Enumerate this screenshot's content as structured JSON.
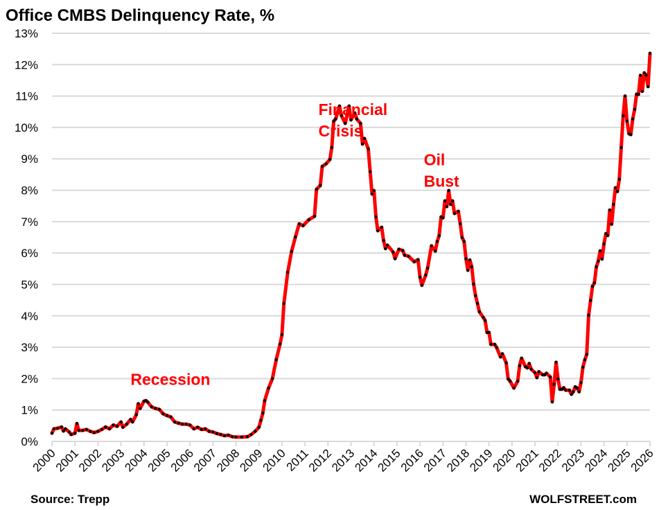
{
  "chart_data": {
    "type": "line",
    "title": "Office CMBS Delinquency Rate, %",
    "xlabel": "",
    "ylabel": "",
    "ylim": [
      0,
      13
    ],
    "xlim": [
      "2000-01",
      "2026-01"
    ],
    "grid": true,
    "legend": "none",
    "y_ticks": [
      "0%",
      "1%",
      "2%",
      "3%",
      "4%",
      "5%",
      "6%",
      "7%",
      "8%",
      "9%",
      "10%",
      "11%",
      "12%",
      "13%"
    ],
    "x_ticks": [
      "2000",
      "2001",
      "2002",
      "2003",
      "2004",
      "2005",
      "2006",
      "2007",
      "2008",
      "2009",
      "2010",
      "2011",
      "2012",
      "2013",
      "2014",
      "2015",
      "2016",
      "2017",
      "2018",
      "2019",
      "2020",
      "2021",
      "2022",
      "2023",
      "2024",
      "2025",
      "2026"
    ],
    "colors": {
      "line": "#ff0000",
      "markers": "#000000",
      "grid": "#d9d9d9",
      "annotations": "#ff0000"
    },
    "annotations": [
      {
        "lines": [
          "Recession"
        ],
        "date": "2003-06",
        "value": 1.8
      },
      {
        "lines": [
          "Financial",
          "Crisis"
        ],
        "date": "2011-08",
        "value": 10.4
      },
      {
        "lines": [
          "Oil",
          "Bust"
        ],
        "date": "2016-03",
        "value": 8.8
      }
    ],
    "series": [
      {
        "points": [
          [
            "2000-01",
            0.26
          ],
          [
            "2000-02",
            0.4
          ],
          [
            "2000-04",
            0.42
          ],
          [
            "2000-06",
            0.46
          ],
          [
            "2000-07",
            0.33
          ],
          [
            "2000-08",
            0.4
          ],
          [
            "2000-10",
            0.3
          ],
          [
            "2000-11",
            0.22
          ],
          [
            "2001-01",
            0.26
          ],
          [
            "2001-02",
            0.57
          ],
          [
            "2001-03",
            0.35
          ],
          [
            "2001-05",
            0.35
          ],
          [
            "2001-07",
            0.38
          ],
          [
            "2001-09",
            0.32
          ],
          [
            "2001-11",
            0.28
          ],
          [
            "2002-01",
            0.32
          ],
          [
            "2002-03",
            0.38
          ],
          [
            "2002-05",
            0.46
          ],
          [
            "2002-07",
            0.4
          ],
          [
            "2002-09",
            0.52
          ],
          [
            "2002-11",
            0.48
          ],
          [
            "2003-01",
            0.62
          ],
          [
            "2003-02",
            0.45
          ],
          [
            "2003-04",
            0.55
          ],
          [
            "2003-06",
            0.7
          ],
          [
            "2003-07",
            0.62
          ],
          [
            "2003-09",
            0.85
          ],
          [
            "2003-10",
            1.2
          ],
          [
            "2003-11",
            1.05
          ],
          [
            "2004-01",
            1.28
          ],
          [
            "2004-02",
            1.3
          ],
          [
            "2004-03",
            1.25
          ],
          [
            "2004-05",
            1.1
          ],
          [
            "2004-07",
            1.05
          ],
          [
            "2004-09",
            1.02
          ],
          [
            "2004-11",
            0.88
          ],
          [
            "2005-01",
            0.82
          ],
          [
            "2005-03",
            0.78
          ],
          [
            "2005-05",
            0.62
          ],
          [
            "2005-07",
            0.58
          ],
          [
            "2005-09",
            0.55
          ],
          [
            "2005-11",
            0.55
          ],
          [
            "2006-01",
            0.52
          ],
          [
            "2006-03",
            0.4
          ],
          [
            "2006-05",
            0.45
          ],
          [
            "2006-07",
            0.38
          ],
          [
            "2006-09",
            0.4
          ],
          [
            "2006-11",
            0.32
          ],
          [
            "2007-01",
            0.3
          ],
          [
            "2007-03",
            0.25
          ],
          [
            "2007-05",
            0.22
          ],
          [
            "2007-07",
            0.18
          ],
          [
            "2007-09",
            0.2
          ],
          [
            "2007-11",
            0.15
          ],
          [
            "2008-01",
            0.14
          ],
          [
            "2008-04",
            0.14
          ],
          [
            "2008-07",
            0.15
          ],
          [
            "2008-09",
            0.22
          ],
          [
            "2008-11",
            0.32
          ],
          [
            "2009-01",
            0.45
          ],
          [
            "2009-02",
            0.67
          ],
          [
            "2009-03",
            0.9
          ],
          [
            "2009-04",
            1.3
          ],
          [
            "2009-06",
            1.7
          ],
          [
            "2009-08",
            2.0
          ],
          [
            "2009-10",
            2.6
          ],
          [
            "2009-12",
            3.1
          ],
          [
            "2010-01",
            3.4
          ],
          [
            "2010-02",
            4.39
          ],
          [
            "2010-04",
            5.39
          ],
          [
            "2010-06",
            6.05
          ],
          [
            "2010-08",
            6.51
          ],
          [
            "2010-10",
            6.93
          ],
          [
            "2010-12",
            6.87
          ],
          [
            "2011-03",
            7.06
          ],
          [
            "2011-06",
            7.17
          ],
          [
            "2011-07",
            8.03
          ],
          [
            "2011-09",
            8.15
          ],
          [
            "2011-10",
            8.76
          ],
          [
            "2011-12",
            8.84
          ],
          [
            "2012-02",
            8.98
          ],
          [
            "2012-03",
            9.36
          ],
          [
            "2012-04",
            10.2
          ],
          [
            "2012-05",
            10.27
          ],
          [
            "2012-07",
            10.68
          ],
          [
            "2012-08",
            10.38
          ],
          [
            "2012-10",
            10.13
          ],
          [
            "2012-12",
            10.68
          ],
          [
            "2013-01",
            10.24
          ],
          [
            "2013-03",
            10.46
          ],
          [
            "2013-04",
            10.27
          ],
          [
            "2013-06",
            10.13
          ],
          [
            "2013-07",
            9.47
          ],
          [
            "2013-08",
            9.65
          ],
          [
            "2013-10",
            9.32
          ],
          [
            "2013-11",
            8.59
          ],
          [
            "2013-12",
            7.88
          ],
          [
            "2014-01",
            7.99
          ],
          [
            "2014-02",
            7.15
          ],
          [
            "2014-03",
            6.71
          ],
          [
            "2014-05",
            6.82
          ],
          [
            "2014-06",
            6.4
          ],
          [
            "2014-07",
            6.14
          ],
          [
            "2014-08",
            6.25
          ],
          [
            "2014-11",
            6.03
          ],
          [
            "2014-12",
            5.82
          ],
          [
            "2015-02",
            6.12
          ],
          [
            "2015-04",
            6.08
          ],
          [
            "2015-05",
            5.93
          ],
          [
            "2015-07",
            5.9
          ],
          [
            "2015-10",
            5.72
          ],
          [
            "2015-12",
            5.79
          ],
          [
            "2016-01",
            5.23
          ],
          [
            "2016-02",
            4.97
          ],
          [
            "2016-04",
            5.3
          ],
          [
            "2016-05",
            5.52
          ],
          [
            "2016-07",
            6.23
          ],
          [
            "2016-09",
            6.06
          ],
          [
            "2016-10",
            6.37
          ],
          [
            "2016-11",
            6.55
          ],
          [
            "2016-12",
            7.15
          ],
          [
            "2017-01",
            7.12
          ],
          [
            "2017-02",
            7.66
          ],
          [
            "2017-03",
            7.48
          ],
          [
            "2017-04",
            7.99
          ],
          [
            "2017-05",
            7.55
          ],
          [
            "2017-06",
            7.66
          ],
          [
            "2017-07",
            7.26
          ],
          [
            "2017-09",
            7.33
          ],
          [
            "2017-10",
            6.93
          ],
          [
            "2017-11",
            6.49
          ],
          [
            "2017-12",
            6.37
          ],
          [
            "2018-01",
            5.82
          ],
          [
            "2018-02",
            5.45
          ],
          [
            "2018-03",
            5.78
          ],
          [
            "2018-04",
            5.56
          ],
          [
            "2018-05",
            5.01
          ],
          [
            "2018-06",
            4.64
          ],
          [
            "2018-07",
            4.39
          ],
          [
            "2018-08",
            4.13
          ],
          [
            "2018-10",
            3.95
          ],
          [
            "2018-11",
            3.85
          ],
          [
            "2018-12",
            3.47
          ],
          [
            "2019-01",
            3.47
          ],
          [
            "2019-02",
            3.09
          ],
          [
            "2019-04",
            3.09
          ],
          [
            "2019-05",
            2.99
          ],
          [
            "2019-07",
            2.69
          ],
          [
            "2019-08",
            2.79
          ],
          [
            "2019-10",
            2.5
          ],
          [
            "2019-11",
            1.99
          ],
          [
            "2019-12",
            1.92
          ],
          [
            "2020-02",
            1.7
          ],
          [
            "2020-04",
            1.92
          ],
          [
            "2020-05",
            2.41
          ],
          [
            "2020-06",
            2.65
          ],
          [
            "2020-08",
            2.38
          ],
          [
            "2020-09",
            2.34
          ],
          [
            "2020-10",
            2.48
          ],
          [
            "2020-11",
            2.3
          ],
          [
            "2021-01",
            2.19
          ],
          [
            "2021-02",
            2.03
          ],
          [
            "2021-03",
            2.22
          ],
          [
            "2021-05",
            2.12
          ],
          [
            "2021-06",
            2.12
          ],
          [
            "2021-07",
            2.17
          ],
          [
            "2021-09",
            2.05
          ],
          [
            "2021-10",
            1.26
          ],
          [
            "2021-11",
            1.82
          ],
          [
            "2021-12",
            2.52
          ],
          [
            "2022-01",
            1.99
          ],
          [
            "2022-02",
            1.66
          ],
          [
            "2022-03",
            1.66
          ],
          [
            "2022-04",
            1.71
          ],
          [
            "2022-05",
            1.63
          ],
          [
            "2022-07",
            1.63
          ],
          [
            "2022-08",
            1.5
          ],
          [
            "2022-09",
            1.58
          ],
          [
            "2022-10",
            1.74
          ],
          [
            "2022-11",
            1.7
          ],
          [
            "2022-12",
            1.58
          ],
          [
            "2023-01",
            1.87
          ],
          [
            "2023-02",
            2.36
          ],
          [
            "2023-03",
            2.6
          ],
          [
            "2023-04",
            2.77
          ],
          [
            "2023-05",
            4.02
          ],
          [
            "2023-06",
            4.49
          ],
          [
            "2023-07",
            4.94
          ],
          [
            "2023-08",
            5.05
          ],
          [
            "2023-09",
            5.56
          ],
          [
            "2023-10",
            5.74
          ],
          [
            "2023-11",
            6.07
          ],
          [
            "2023-12",
            5.81
          ],
          [
            "2024-01",
            6.29
          ],
          [
            "2024-02",
            6.62
          ],
          [
            "2024-03",
            6.56
          ],
          [
            "2024-04",
            7.37
          ],
          [
            "2024-05",
            6.92
          ],
          [
            "2024-06",
            7.55
          ],
          [
            "2024-07",
            8.08
          ],
          [
            "2024-08",
            7.96
          ],
          [
            "2024-09",
            8.35
          ],
          [
            "2024-10",
            9.36
          ],
          [
            "2024-11",
            10.37
          ],
          [
            "2024-12",
            11.0
          ],
          [
            "2025-01",
            10.2
          ],
          [
            "2025-02",
            9.8
          ],
          [
            "2025-03",
            9.77
          ],
          [
            "2025-04",
            10.27
          ],
          [
            "2025-05",
            10.58
          ],
          [
            "2025-06",
            11.06
          ],
          [
            "2025-07",
            11.05
          ],
          [
            "2025-08",
            11.66
          ],
          [
            "2025-09",
            11.15
          ],
          [
            "2025-10",
            11.74
          ],
          [
            "2025-11",
            11.67
          ],
          [
            "2025-12",
            11.3
          ],
          [
            "2026-01",
            12.36
          ]
        ]
      }
    ]
  },
  "footer": {
    "source": "Source: Trepp",
    "brand": "WOLFSTREET.com"
  }
}
